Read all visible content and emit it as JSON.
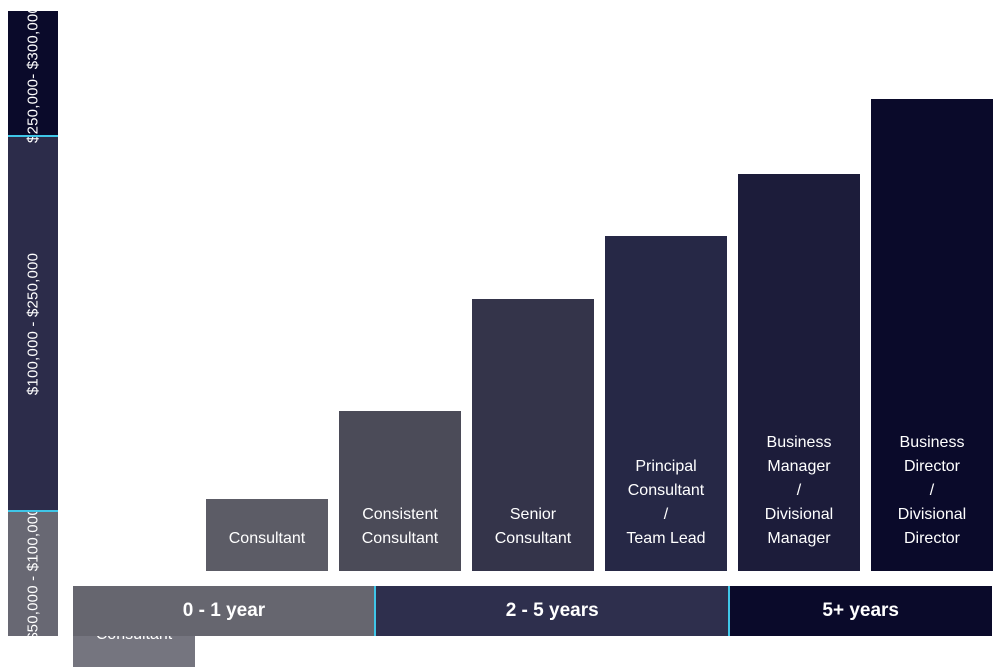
{
  "chart_data": {
    "type": "bar",
    "categories": [
      "Associate\nConsultant",
      "Consultant",
      "Consistent\nConsultant",
      "Senior\nConsultant",
      "Principal\nConsultant\n/\nTeam Lead",
      "Business\nManager\n/\nDivisional\nManager",
      "Business\nDirector\n/\nDivisional\nDirector"
    ],
    "values": [
      65000,
      105000,
      140000,
      185000,
      210000,
      235000,
      265000
    ],
    "bar_colors": [
      "#75757f",
      "#5c5c66",
      "#4b4b58",
      "#34344a",
      "#262846",
      "#1c1c3a",
      "#0a0a2a"
    ],
    "salary_bands": [
      {
        "label": "$50,000 - $100,000",
        "min": 50000,
        "max": 100000,
        "color": "#686873"
      },
      {
        "label": "$100,000 - $250,000",
        "min": 100000,
        "max": 250000,
        "color": "#2c2c4a"
      },
      {
        "label": "$250,000- $300,000",
        "min": 250000,
        "max": 300000,
        "color": "#0a0a2a"
      }
    ],
    "experience_periods": [
      {
        "label": "0 - 1 year",
        "from": 0,
        "to": 2.3,
        "color": "#66666f"
      },
      {
        "label": "2 - 5 years",
        "from": 2.3,
        "to": 5,
        "color": "#2e2f4d"
      },
      {
        "label": "5+ years",
        "from": 5,
        "to": 7,
        "color": "#0a0a2a"
      }
    ],
    "ylim": [
      50000,
      300000
    ],
    "band_separator_color": "#3fc6e8"
  }
}
